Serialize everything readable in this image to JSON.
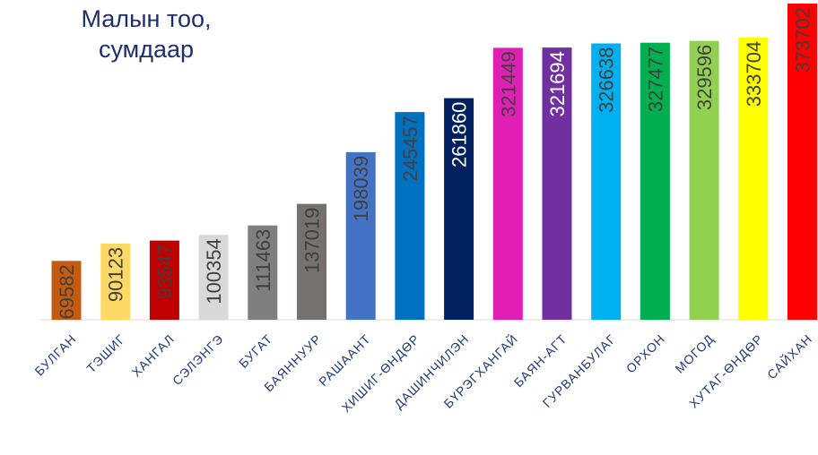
{
  "chart_data": {
    "type": "bar",
    "title_lines": [
      "Малын тоо,",
      "сумдаар"
    ],
    "categories": [
      "БУЛГАН",
      "ТЭШИГ",
      "ХАНГАЛ",
      "СЭЛЭНГЭ",
      "БУГАТ",
      "БАЯННУУР",
      "РАШААНТ",
      "ХИШИГ-ӨНДӨР",
      "ДАШИНЧИЛЭН",
      "БҮРЭГХАНГАЙ",
      "БАЯН-АГТ",
      "ГУРВАНБУЛАГ",
      "ОРХОН",
      "МОГОД",
      "ХУТАГ-ӨНДӨР",
      "САЙХАН"
    ],
    "values": [
      69582,
      90123,
      93547,
      100354,
      111463,
      137019,
      198039,
      245457,
      261860,
      321449,
      321694,
      326638,
      327477,
      329596,
      333704,
      373702
    ],
    "colors": [
      "#c55a11",
      "#ffd966",
      "#c00000",
      "#d9d9d9",
      "#7f7f7f",
      "#767171",
      "#4472c4",
      "#0070c0",
      "#002060",
      "#e01fb4",
      "#7030a0",
      "#00b0f0",
      "#00b050",
      "#92d050",
      "#ffff00",
      "#ff0000"
    ],
    "label_colors": [
      "#404040",
      "#404040",
      "#404040",
      "#404040",
      "#404040",
      "#404040",
      "#404040",
      "#404040",
      "#ffffff",
      "#404040",
      "#ffffff",
      "#404040",
      "#404040",
      "#404040",
      "#404040",
      "#404040"
    ],
    "ylim": [
      0,
      373702
    ],
    "xlabel": "",
    "ylabel": "",
    "grid": false,
    "legend": "none"
  }
}
